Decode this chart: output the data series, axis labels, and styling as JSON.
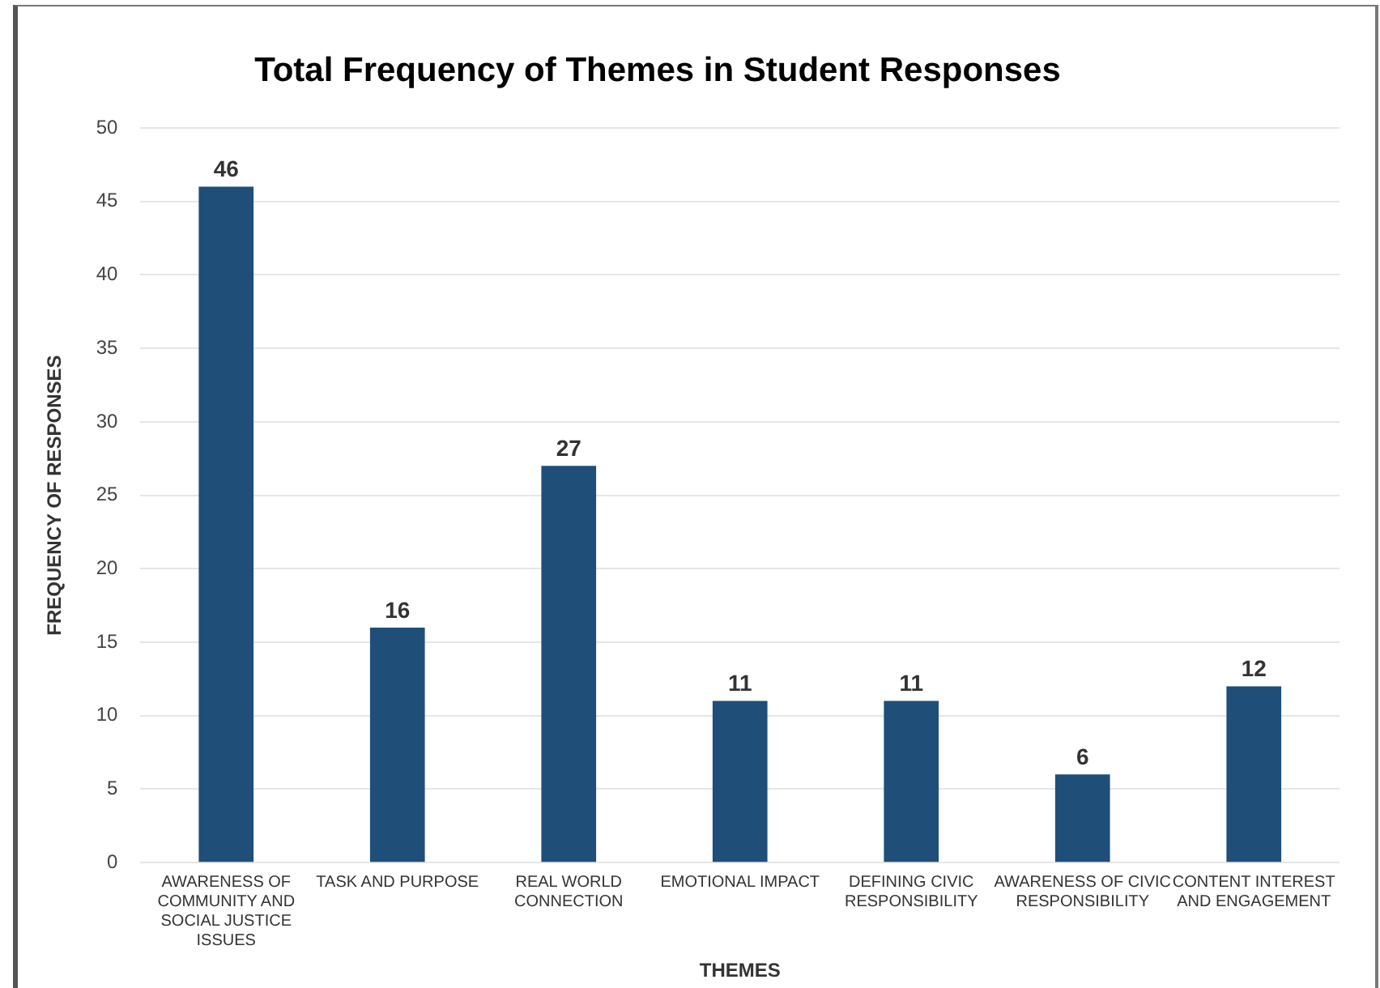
{
  "chart_data": {
    "type": "bar",
    "title": "Total Frequency of Themes in Student Responses",
    "xlabel": "THEMES",
    "ylabel": "FREQUENCY OF RESPONSES",
    "categories": [
      "AWARENESS OF COMMUNITY AND SOCIAL JUSTICE ISSUES",
      "TASK AND PURPOSE",
      "REAL WORLD CONNECTION",
      "EMOTIONAL IMPACT",
      "DEFINING CIVIC RESPONSIBILITY",
      "AWARENESS OF CIVIC RESPONSIBILITY",
      "CONTENT INTEREST AND ENGAGEMENT"
    ],
    "values": [
      46,
      16,
      27,
      11,
      11,
      6,
      12
    ],
    "color": "#1f4e79",
    "ylim": [
      0,
      50
    ],
    "yticks": [
      0,
      5,
      10,
      15,
      20,
      25,
      30,
      35,
      40,
      45,
      50
    ],
    "grid": "y",
    "data_labels": true
  }
}
